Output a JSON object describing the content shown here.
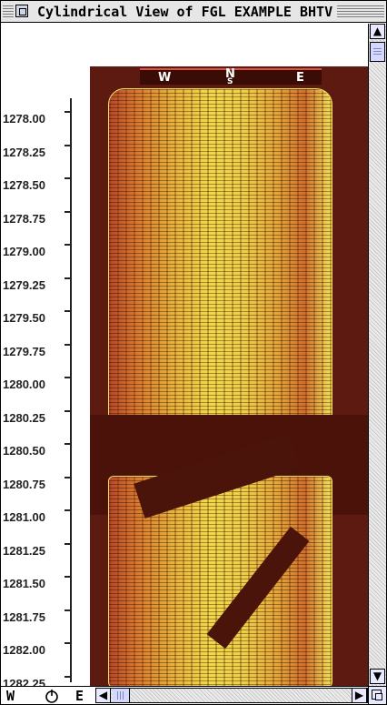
{
  "window": {
    "title": "Cylindrical View of FGL EXAMPLE BHTV"
  },
  "depth_axis": {
    "labels": [
      "1278.00",
      "1278.25",
      "1278.50",
      "1278.75",
      "1279.00",
      "1279.25",
      "1279.50",
      "1279.75",
      "1280.00",
      "1280.25",
      "1280.50",
      "1280.75",
      "1281.00",
      "1281.25",
      "1281.50",
      "1281.75",
      "1282.00",
      "1282.25"
    ]
  },
  "compass": {
    "west": "W",
    "north": "N",
    "south": "S",
    "east": "E"
  },
  "bottom_bar": {
    "west_label": "W",
    "east_label": "E"
  },
  "icons": {
    "close_box": "close-box-icon",
    "rotate": "rotate-icon",
    "scroll_up": "arrow-up-icon",
    "scroll_down": "arrow-down-icon",
    "scroll_left": "arrow-left-icon",
    "scroll_right": "arrow-right-icon",
    "grow_box": "grow-box-icon"
  },
  "colors": {
    "background": "#5c1a10",
    "image_high": "#f2d84a",
    "image_mid": "#d9782e",
    "image_low": "#b8482a"
  }
}
